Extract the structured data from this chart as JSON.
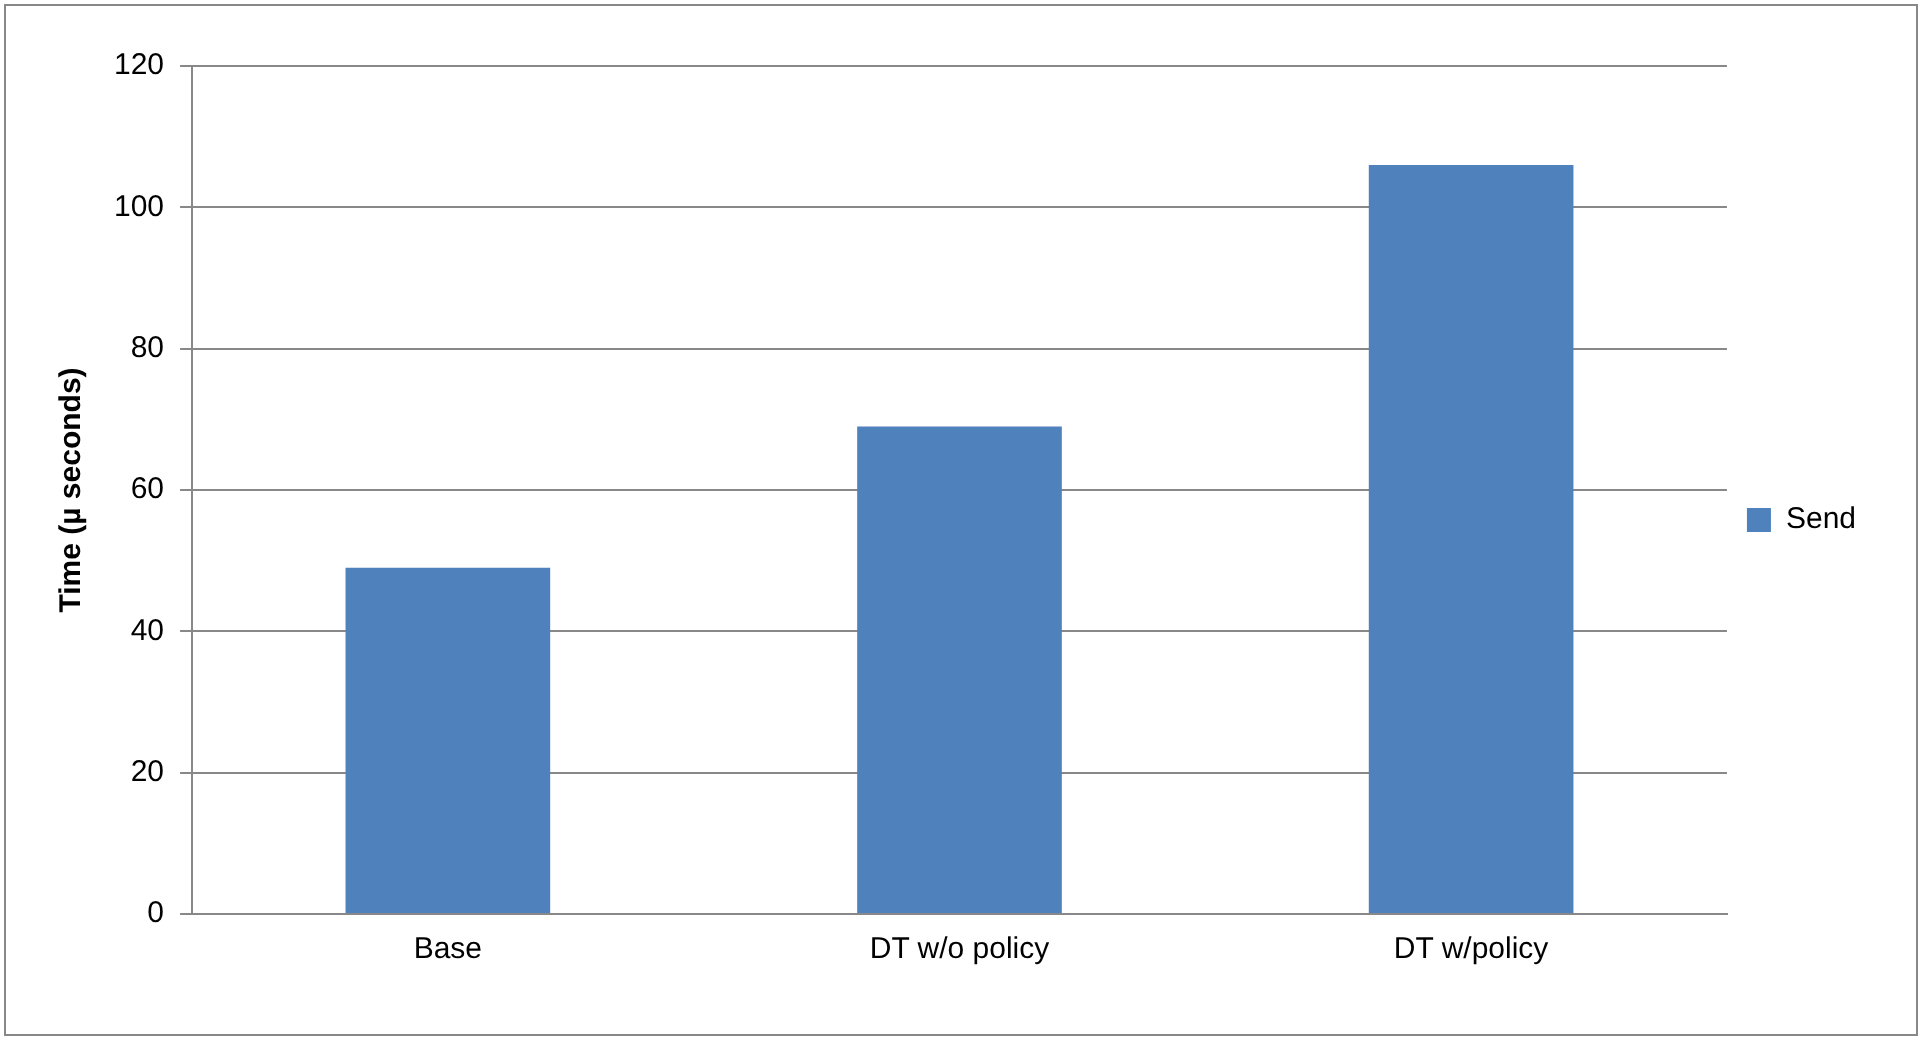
{
  "chart_data": {
    "type": "bar",
    "ylabel": "Time (µ seconds)",
    "categories": [
      "Base",
      "DT w/o policy",
      "DT w/policy"
    ],
    "series": [
      {
        "name": "Send",
        "color": "#4f81bd",
        "values": [
          49,
          69,
          106
        ]
      }
    ],
    "ylim": [
      0,
      120
    ],
    "yticks": [
      0,
      20,
      40,
      60,
      80,
      100,
      120
    ],
    "grid": "y",
    "legend": "right"
  }
}
